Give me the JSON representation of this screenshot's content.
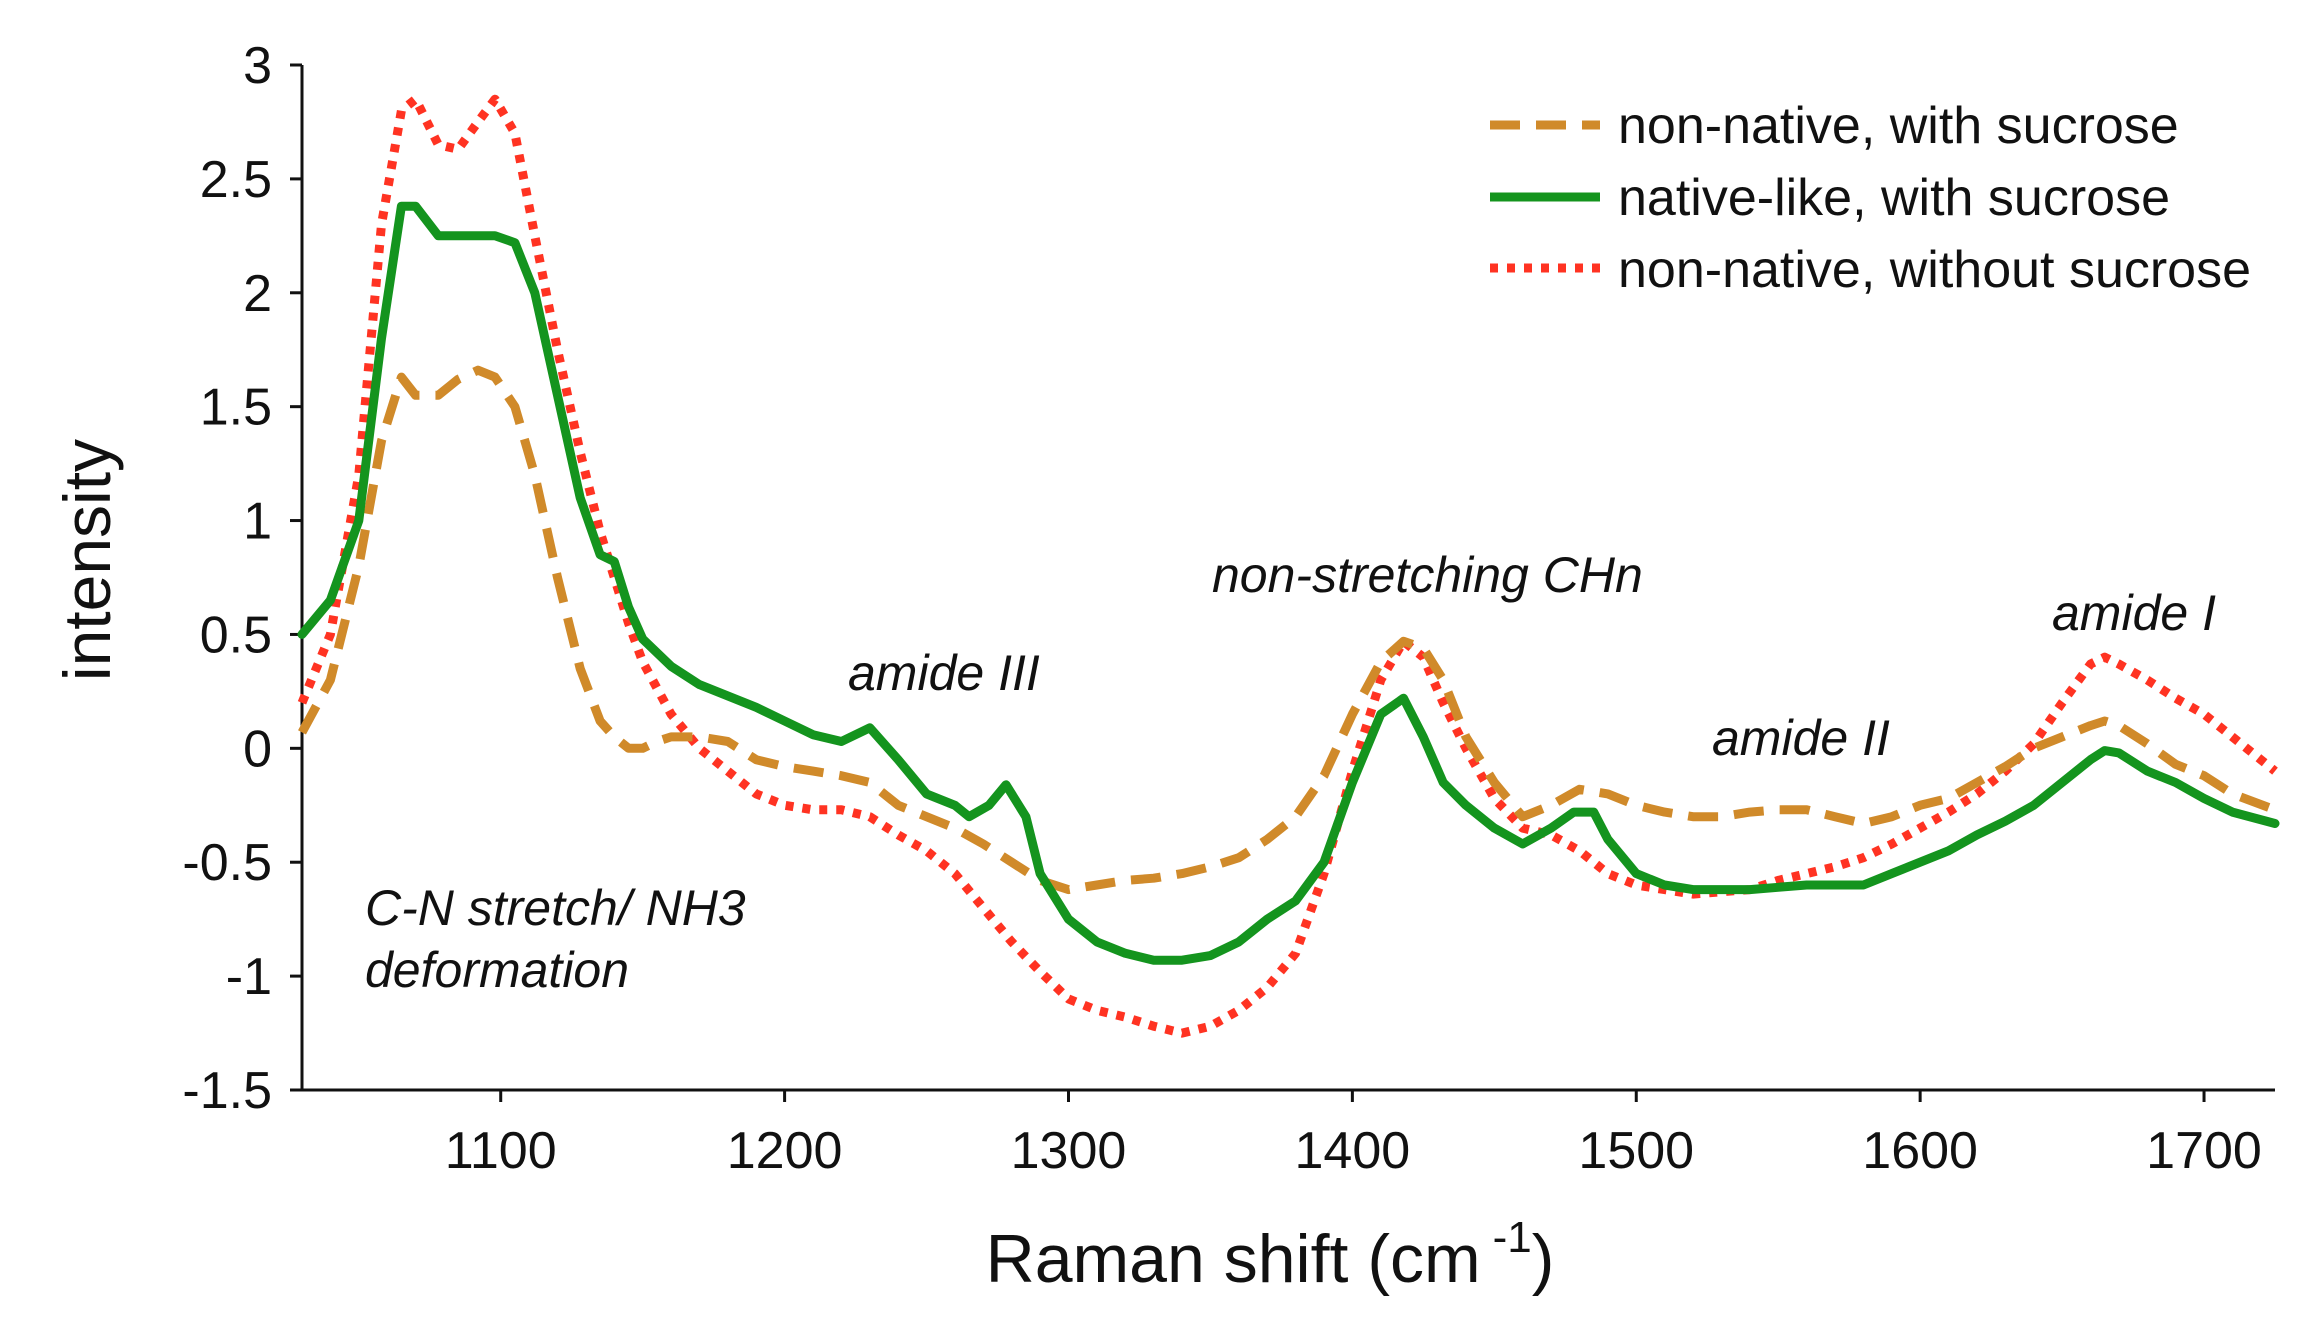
{
  "chart_data": {
    "type": "line",
    "title": "",
    "xlabel": "Raman shift (cm",
    "xlabel_sup": "-1",
    "xlabel_close": ")",
    "ylabel": "intensity",
    "xlim": [
      1030,
      1725
    ],
    "ylim": [
      -1.5,
      3
    ],
    "xticks": [
      1100,
      1200,
      1300,
      1400,
      1500,
      1600,
      1700
    ],
    "xtick_labels": [
      "1100",
      "1200",
      "1300",
      "1400",
      "1500",
      "1600",
      "1700"
    ],
    "yticks": [
      -1.5,
      -1,
      -0.5,
      0,
      0.5,
      1,
      1.5,
      2,
      2.5,
      3
    ],
    "ytick_labels": [
      "-1.5",
      "-1",
      "-0.5",
      "0",
      "0.5",
      "1",
      "1.5",
      "2",
      "2.5",
      "3"
    ],
    "legend_position": "top-right",
    "series": [
      {
        "name": "non-native, with sucrose",
        "color": "#D08A2A",
        "style": "dashed",
        "x": [
          1030,
          1040,
          1050,
          1058,
          1065,
          1070,
          1078,
          1085,
          1092,
          1098,
          1105,
          1112,
          1120,
          1128,
          1135,
          1140,
          1145,
          1150,
          1155,
          1160,
          1170,
          1180,
          1190,
          1200,
          1210,
          1220,
          1230,
          1240,
          1250,
          1260,
          1270,
          1280,
          1290,
          1300,
          1310,
          1320,
          1330,
          1340,
          1350,
          1360,
          1370,
          1380,
          1390,
          1400,
          1410,
          1418,
          1425,
          1432,
          1440,
          1450,
          1460,
          1470,
          1480,
          1490,
          1500,
          1510,
          1520,
          1530,
          1540,
          1550,
          1560,
          1570,
          1580,
          1590,
          1600,
          1610,
          1620,
          1630,
          1640,
          1650,
          1660,
          1665,
          1670,
          1680,
          1690,
          1700,
          1710,
          1725
        ],
        "values": [
          0.07,
          0.3,
          0.8,
          1.35,
          1.63,
          1.55,
          1.55,
          1.62,
          1.66,
          1.63,
          1.5,
          1.2,
          0.75,
          0.35,
          0.12,
          0.05,
          0.0,
          0.0,
          0.03,
          0.05,
          0.05,
          0.03,
          -0.05,
          -0.08,
          -0.1,
          -0.12,
          -0.15,
          -0.25,
          -0.3,
          -0.35,
          -0.42,
          -0.5,
          -0.58,
          -0.62,
          -0.6,
          -0.58,
          -0.57,
          -0.55,
          -0.52,
          -0.48,
          -0.4,
          -0.3,
          -0.12,
          0.15,
          0.38,
          0.47,
          0.44,
          0.3,
          0.05,
          -0.15,
          -0.3,
          -0.25,
          -0.18,
          -0.2,
          -0.25,
          -0.28,
          -0.3,
          -0.3,
          -0.28,
          -0.27,
          -0.27,
          -0.3,
          -0.33,
          -0.3,
          -0.25,
          -0.22,
          -0.15,
          -0.08,
          0.0,
          0.05,
          0.1,
          0.12,
          0.1,
          0.02,
          -0.07,
          -0.12,
          -0.2,
          -0.27
        ]
      },
      {
        "name": "native-like, with sucrose",
        "color": "#14941E",
        "style": "solid",
        "x": [
          1030,
          1040,
          1050,
          1058,
          1065,
          1070,
          1078,
          1085,
          1092,
          1098,
          1105,
          1112,
          1120,
          1128,
          1135,
          1140,
          1145,
          1150,
          1160,
          1170,
          1180,
          1190,
          1200,
          1210,
          1220,
          1230,
          1240,
          1250,
          1260,
          1265,
          1272,
          1278,
          1285,
          1290,
          1300,
          1310,
          1320,
          1330,
          1340,
          1350,
          1360,
          1370,
          1380,
          1390,
          1400,
          1410,
          1418,
          1425,
          1432,
          1440,
          1450,
          1460,
          1470,
          1478,
          1485,
          1490,
          1500,
          1510,
          1520,
          1530,
          1540,
          1550,
          1560,
          1570,
          1580,
          1590,
          1600,
          1610,
          1620,
          1630,
          1640,
          1650,
          1660,
          1665,
          1670,
          1680,
          1690,
          1700,
          1710,
          1725
        ],
        "values": [
          0.5,
          0.65,
          1.0,
          1.8,
          2.38,
          2.38,
          2.25,
          2.25,
          2.25,
          2.25,
          2.22,
          2.0,
          1.55,
          1.1,
          0.85,
          0.82,
          0.62,
          0.48,
          0.36,
          0.28,
          0.23,
          0.18,
          0.12,
          0.06,
          0.03,
          0.09,
          -0.05,
          -0.2,
          -0.25,
          -0.3,
          -0.25,
          -0.16,
          -0.3,
          -0.55,
          -0.75,
          -0.85,
          -0.9,
          -0.93,
          -0.93,
          -0.91,
          -0.85,
          -0.75,
          -0.67,
          -0.5,
          -0.15,
          0.15,
          0.22,
          0.05,
          -0.15,
          -0.25,
          -0.35,
          -0.42,
          -0.35,
          -0.28,
          -0.28,
          -0.4,
          -0.55,
          -0.6,
          -0.62,
          -0.62,
          -0.62,
          -0.61,
          -0.6,
          -0.6,
          -0.6,
          -0.55,
          -0.5,
          -0.45,
          -0.38,
          -0.32,
          -0.25,
          -0.15,
          -0.05,
          -0.01,
          -0.02,
          -0.1,
          -0.15,
          -0.22,
          -0.28,
          -0.33
        ]
      },
      {
        "name": "non-native, without sucrose",
        "color": "#FF3322",
        "style": "dotted",
        "x": [
          1030,
          1040,
          1050,
          1058,
          1065,
          1070,
          1078,
          1085,
          1092,
          1098,
          1105,
          1112,
          1120,
          1128,
          1135,
          1140,
          1145,
          1150,
          1160,
          1170,
          1180,
          1190,
          1200,
          1210,
          1220,
          1230,
          1240,
          1250,
          1260,
          1270,
          1280,
          1290,
          1300,
          1310,
          1320,
          1330,
          1340,
          1350,
          1360,
          1370,
          1380,
          1390,
          1400,
          1410,
          1418,
          1425,
          1432,
          1440,
          1450,
          1460,
          1470,
          1480,
          1490,
          1500,
          1510,
          1520,
          1530,
          1540,
          1550,
          1560,
          1570,
          1580,
          1590,
          1600,
          1610,
          1620,
          1630,
          1640,
          1650,
          1660,
          1665,
          1670,
          1680,
          1690,
          1700,
          1710,
          1725
        ],
        "values": [
          0.2,
          0.5,
          1.2,
          2.3,
          2.8,
          2.85,
          2.65,
          2.63,
          2.75,
          2.85,
          2.7,
          2.25,
          1.75,
          1.3,
          0.95,
          0.75,
          0.55,
          0.38,
          0.15,
          0.0,
          -0.1,
          -0.2,
          -0.25,
          -0.27,
          -0.27,
          -0.3,
          -0.38,
          -0.45,
          -0.55,
          -0.7,
          -0.85,
          -0.98,
          -1.1,
          -1.15,
          -1.18,
          -1.22,
          -1.25,
          -1.22,
          -1.15,
          -1.05,
          -0.9,
          -0.55,
          -0.1,
          0.3,
          0.47,
          0.4,
          0.2,
          0.0,
          -0.22,
          -0.35,
          -0.38,
          -0.45,
          -0.55,
          -0.6,
          -0.62,
          -0.64,
          -0.63,
          -0.62,
          -0.58,
          -0.55,
          -0.52,
          -0.48,
          -0.42,
          -0.35,
          -0.28,
          -0.2,
          -0.1,
          0.02,
          0.2,
          0.37,
          0.4,
          0.37,
          0.3,
          0.22,
          0.15,
          0.05,
          -0.1
        ]
      }
    ],
    "annotations": [
      {
        "id": "cn",
        "lines": [
          "C-N stretch/ NH3",
          "deformation"
        ]
      },
      {
        "id": "amide3",
        "lines": [
          "amide III"
        ]
      },
      {
        "id": "chn",
        "lines": [
          "non-stretching CHn"
        ]
      },
      {
        "id": "amide2",
        "lines": [
          "amide II"
        ]
      },
      {
        "id": "amide1",
        "lines": [
          "amide I"
        ]
      }
    ]
  }
}
